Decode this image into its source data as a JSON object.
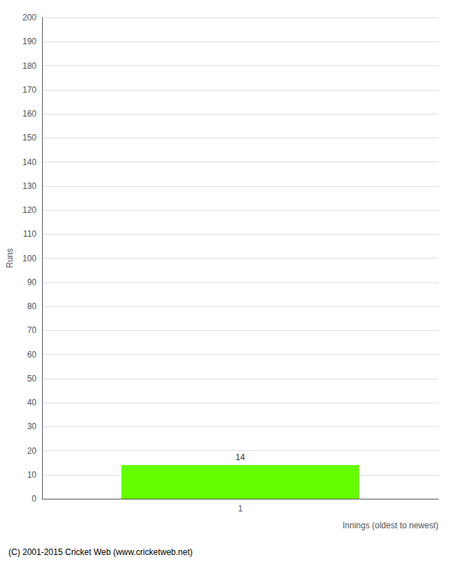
{
  "chart_data": {
    "type": "bar",
    "categories": [
      "1"
    ],
    "values": [
      14
    ],
    "color": "#66ff00",
    "xlabel": "Innings (oldest to newest)",
    "ylabel": "Runs",
    "ylim": [
      0,
      200
    ],
    "yticks": [
      0,
      10,
      20,
      30,
      40,
      50,
      60,
      70,
      80,
      90,
      100,
      110,
      120,
      130,
      140,
      150,
      160,
      170,
      180,
      190,
      200
    ],
    "grid": true,
    "data_labels": true,
    "annotations": [
      "(C) 2001-2015 Cricket Web (www.cricketweb.net)"
    ]
  }
}
